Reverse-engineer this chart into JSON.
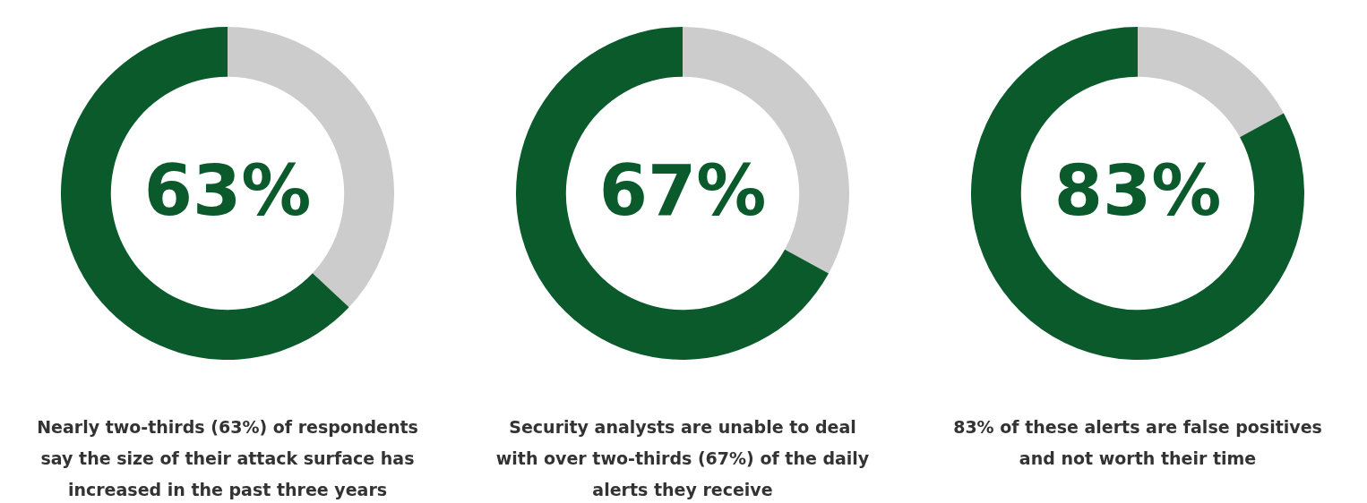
{
  "chart_data": [
    {
      "type": "donut",
      "categories": [
        null,
        null
      ],
      "values": [
        37,
        63
      ],
      "colors": [
        "#cccccc",
        "#0b5a2c"
      ],
      "value_labels": [
        null,
        "63%"
      ],
      "annotations": [
        "Nearly two-thirds (63%) of respondents say the size of their attack surface has increased in the past three years"
      ]
    },
    {
      "type": "donut",
      "categories": [
        null,
        null
      ],
      "values": [
        33,
        67
      ],
      "colors": [
        "#cccccc",
        "#0b5a2c"
      ],
      "value_labels": [
        null,
        "67%"
      ],
      "annotations": [
        "Security analysts are unable to deal with over two-thirds (67%) of the daily alerts they receive"
      ]
    },
    {
      "type": "donut",
      "categories": [
        null,
        null
      ],
      "values": [
        17,
        83
      ],
      "colors": [
        "#cccccc",
        "#0b5a2c"
      ],
      "value_labels": [
        null,
        "83%"
      ],
      "annotations": [
        "83% of these alerts are false positives and not worth their time"
      ]
    }
  ]
}
